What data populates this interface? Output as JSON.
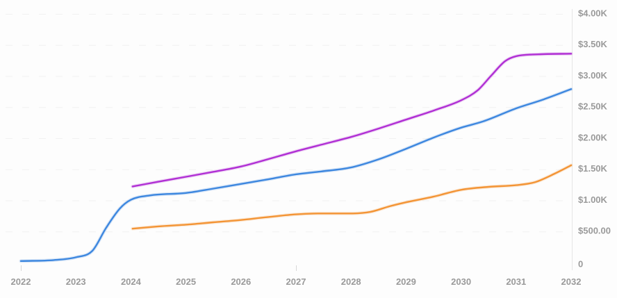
{
  "chart_data": {
    "type": "line",
    "title": "",
    "xlabel": "",
    "ylabel": "",
    "legend": "none",
    "grid": "faint dashed horizontal gridlines at each $500 step",
    "x": [
      2022,
      2023,
      2024,
      2025,
      2026,
      2027,
      2028,
      2029,
      2030,
      2031,
      2032
    ],
    "x_tick_labels": [
      "2022",
      "2023",
      "2024",
      "2025",
      "2026",
      "2027",
      "2028",
      "2029",
      "2030",
      "2031",
      "2032"
    ],
    "ylim": [
      0,
      4000
    ],
    "xlim": [
      2022,
      2032
    ],
    "y_ticks": [
      {
        "value": 0,
        "label": "0"
      },
      {
        "value": 500,
        "label": "$500.00"
      },
      {
        "value": 1000,
        "label": "$1.00K"
      },
      {
        "value": 1500,
        "label": "$1.50K"
      },
      {
        "value": 2000,
        "label": "$2.00K"
      },
      {
        "value": 2500,
        "label": "$2.50K"
      },
      {
        "value": 3000,
        "label": "$3.00K"
      },
      {
        "value": 3500,
        "label": "$3.50K"
      },
      {
        "value": 4000,
        "label": "$4.00K"
      }
    ],
    "series": [
      {
        "name": "blue",
        "color": "#3d87df",
        "values": [
          25,
          85,
          1010,
          1120,
          1265,
          1420,
          1530,
          1830,
          2170,
          2480,
          2790
        ],
        "points": [
          [
            2022,
            25
          ],
          [
            2022.6,
            40
          ],
          [
            2023,
            85
          ],
          [
            2023.3,
            190
          ],
          [
            2023.55,
            560
          ],
          [
            2023.8,
            870
          ],
          [
            2024,
            1010
          ],
          [
            2024.35,
            1080
          ],
          [
            2025,
            1120
          ],
          [
            2025.5,
            1190
          ],
          [
            2026,
            1265
          ],
          [
            2026.5,
            1340
          ],
          [
            2027,
            1420
          ],
          [
            2027.45,
            1465
          ],
          [
            2028,
            1530
          ],
          [
            2028.5,
            1660
          ],
          [
            2029,
            1830
          ],
          [
            2029.5,
            2010
          ],
          [
            2030,
            2170
          ],
          [
            2030.4,
            2270
          ],
          [
            2031,
            2480
          ],
          [
            2031.5,
            2625
          ],
          [
            2032,
            2790
          ]
        ]
      },
      {
        "name": "orange",
        "color": "#f39435",
        "values": [
          null,
          null,
          545,
          610,
          685,
          775,
          790,
          970,
          1170,
          1245,
          1565
        ],
        "points": [
          [
            2024.03,
            545
          ],
          [
            2024.5,
            582
          ],
          [
            2025,
            610
          ],
          [
            2025.5,
            648
          ],
          [
            2026,
            685
          ],
          [
            2026.5,
            733
          ],
          [
            2027,
            775
          ],
          [
            2027.4,
            790
          ],
          [
            2028,
            790
          ],
          [
            2028.35,
            815
          ],
          [
            2028.7,
            905
          ],
          [
            2029,
            970
          ],
          [
            2029.5,
            1060
          ],
          [
            2030,
            1170
          ],
          [
            2030.5,
            1218
          ],
          [
            2031,
            1245
          ],
          [
            2031.35,
            1295
          ],
          [
            2031.7,
            1430
          ],
          [
            2032,
            1565
          ]
        ]
      },
      {
        "name": "magenta",
        "color": "#b02fd4",
        "values": [
          null,
          null,
          1225,
          1380,
          1545,
          1790,
          2020,
          2300,
          2610,
          3320,
          3360
        ],
        "points": [
          [
            2024.03,
            1225
          ],
          [
            2024.5,
            1300
          ],
          [
            2025,
            1380
          ],
          [
            2025.5,
            1460
          ],
          [
            2026,
            1545
          ],
          [
            2026.5,
            1665
          ],
          [
            2027,
            1790
          ],
          [
            2027.5,
            1905
          ],
          [
            2028,
            2020
          ],
          [
            2028.5,
            2155
          ],
          [
            2029,
            2300
          ],
          [
            2029.5,
            2445
          ],
          [
            2030,
            2610
          ],
          [
            2030.3,
            2770
          ],
          [
            2030.55,
            3010
          ],
          [
            2030.8,
            3240
          ],
          [
            2031,
            3320
          ],
          [
            2031.4,
            3350
          ],
          [
            2032,
            3360
          ]
        ]
      }
    ],
    "visible_x_axis_ticks": [
      2022,
      2027
    ],
    "colors": {
      "axis_line": "#e6e6e6",
      "tick_mark": "#d8d8d8",
      "gridline": "#f1f1f1",
      "label_text": "#9a9a9a",
      "background": "#fdfdfd"
    }
  }
}
